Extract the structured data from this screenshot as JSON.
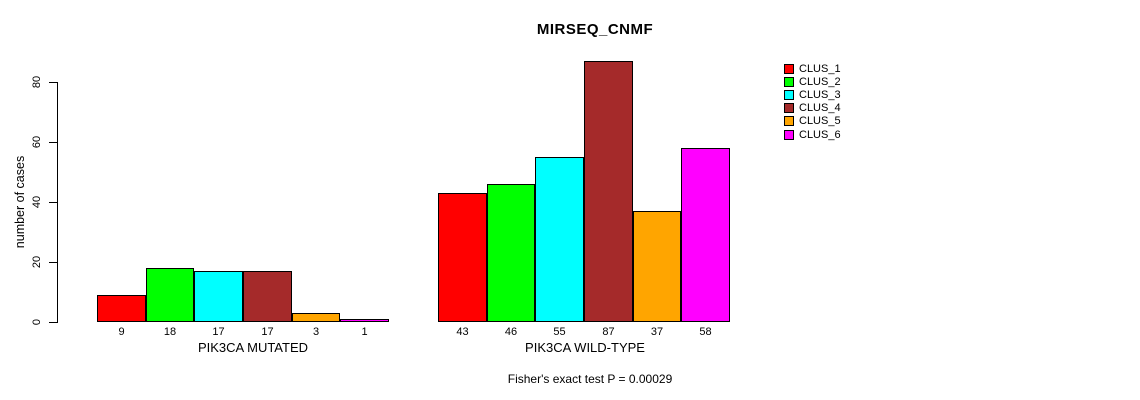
{
  "chart_data": {
    "type": "bar",
    "title": "MIRSEQ_CNMF",
    "ylabel": "number of cases",
    "ylim": [
      0,
      80
    ],
    "yticks": [
      0,
      20,
      40,
      60,
      80
    ],
    "grid": false,
    "legend_position": "right",
    "categories": [
      "PIK3CA MUTATED",
      "PIK3CA WILD-TYPE"
    ],
    "series": [
      {
        "name": "CLUS_1",
        "color": "#FF0000",
        "values": [
          9,
          43
        ]
      },
      {
        "name": "CLUS_2",
        "color": "#00FF00",
        "values": [
          18,
          46
        ]
      },
      {
        "name": "CLUS_3",
        "color": "#00FFFF",
        "values": [
          17,
          55
        ]
      },
      {
        "name": "CLUS_4",
        "color": "#A52A2A",
        "values": [
          17,
          87
        ]
      },
      {
        "name": "CLUS_5",
        "color": "#FFA500",
        "values": [
          3,
          37
        ]
      },
      {
        "name": "CLUS_6",
        "color": "#FF00FF",
        "values": [
          1,
          58
        ]
      }
    ],
    "bar_value_labels": {
      "PIK3CA MUTATED": [
        9,
        18,
        17,
        17,
        3,
        1
      ],
      "PIK3CA WILD-TYPE": [
        43,
        46,
        55,
        87,
        37,
        58
      ]
    },
    "annotation": "Fisher's exact test P = 0.00029"
  }
}
